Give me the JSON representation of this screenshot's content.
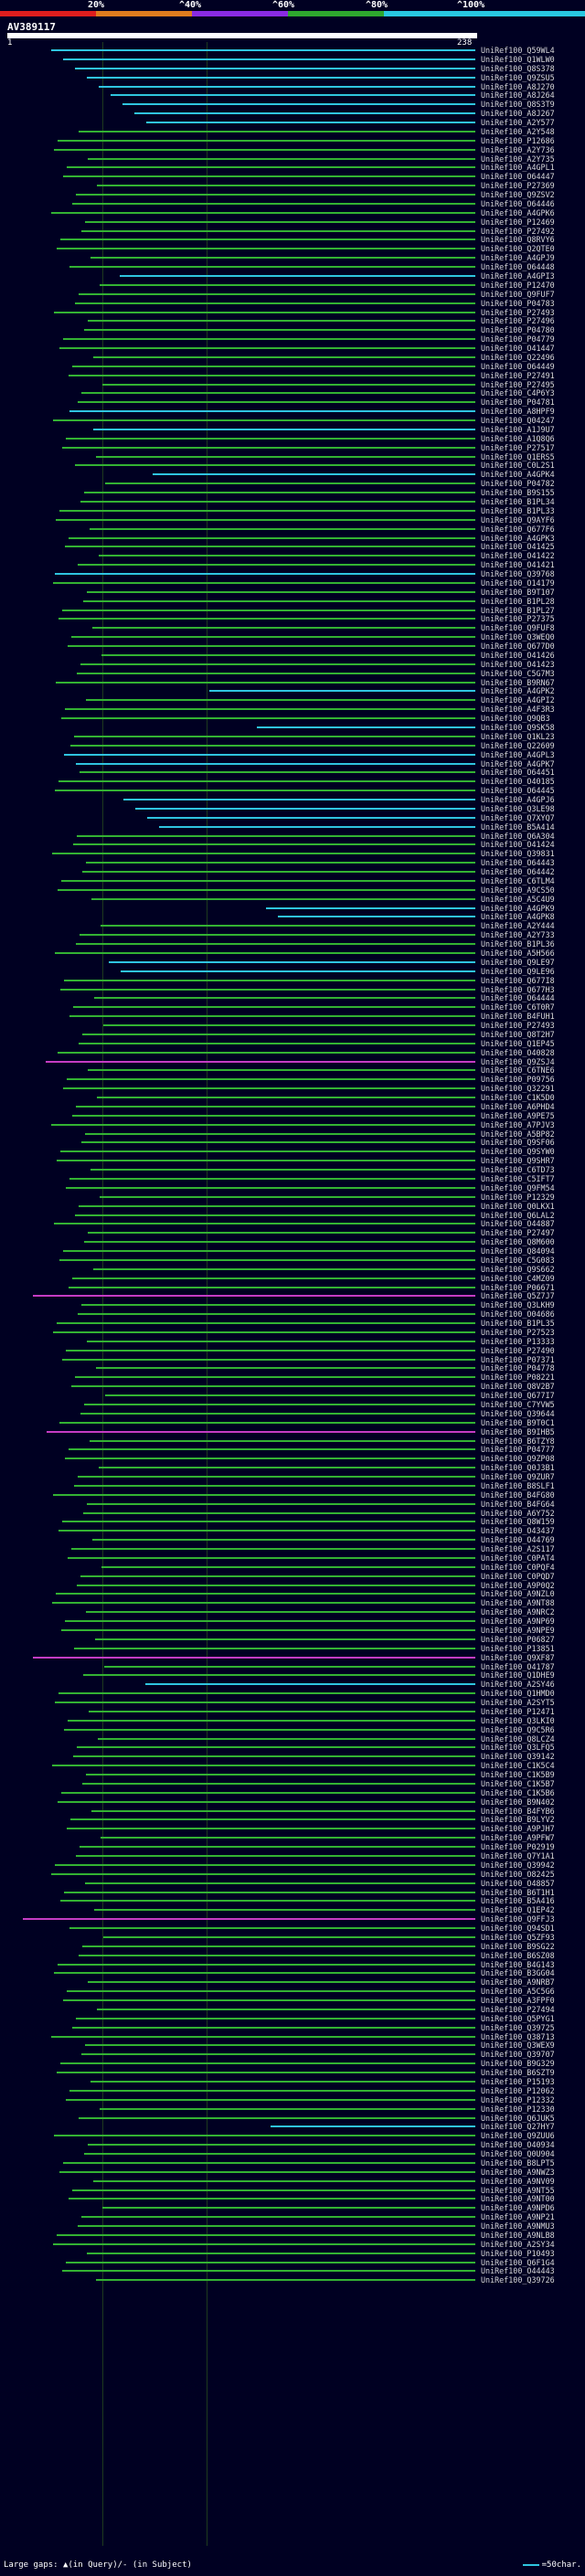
{
  "scale": {
    "ticks": [
      "20%",
      "^40%",
      "^60%",
      "^80%",
      "^100%"
    ],
    "colors": [
      "#e01e1e",
      "#e07c1e",
      "#8a2be2",
      "#2ea82e",
      "#28c8e0"
    ]
  },
  "query": {
    "accession": "AV389117",
    "start": "1",
    "end": "238"
  },
  "legend": {
    "text": "Large gaps: ▲(in Query)/- (in Subject)",
    "right": "=50char."
  },
  "colors": {
    "green": "#33b233",
    "cyan": "#2fc4e0",
    "magenta": "#c43cc4",
    "bg": "#000022"
  },
  "hits": [
    {
      "label": "UniRef100_Q59WL4",
      "color": "cyan"
    },
    {
      "label": "UniRef100_Q1WLW0",
      "color": "cyan"
    },
    {
      "label": "UniRef100_Q8S378",
      "color": "cyan"
    },
    {
      "label": "UniRef100_Q9ZSU5",
      "color": "cyan"
    },
    {
      "label": "UniRef100_A8J270",
      "color": "cyan"
    },
    {
      "label": "UniRef100_A8J264",
      "color": "cyan"
    },
    {
      "label": "UniRef100_Q8S3T9",
      "color": "cyan"
    },
    {
      "label": "UniRef100_A8J267",
      "color": "cyan"
    },
    {
      "label": "UniRef100_A2Y577",
      "color": "cyan"
    },
    {
      "label": "UniRef100_A2Y548",
      "color": "green"
    },
    {
      "label": "UniRef100_P12686",
      "color": "green"
    },
    {
      "label": "UniRef100_A2Y736",
      "color": "green"
    },
    {
      "label": "UniRef100_A2Y735",
      "color": "green"
    },
    {
      "label": "UniRef100_A4GPL1",
      "color": "green"
    },
    {
      "label": "UniRef100_O64447",
      "color": "green"
    },
    {
      "label": "UniRef100_P27369",
      "color": "green"
    },
    {
      "label": "UniRef100_Q9ZSV2",
      "color": "green"
    },
    {
      "label": "UniRef100_O64446",
      "color": "green"
    },
    {
      "label": "UniRef100_A4GPK6",
      "color": "green"
    },
    {
      "label": "UniRef100_P12469",
      "color": "green"
    },
    {
      "label": "UniRef100_P27492",
      "color": "green"
    },
    {
      "label": "UniRef100_Q8RVY6",
      "color": "green"
    },
    {
      "label": "UniRef100_Q2QTE0",
      "color": "green"
    },
    {
      "label": "UniRef100_A4GPJ9",
      "color": "green"
    },
    {
      "label": "UniRef100_O64448",
      "color": "green"
    },
    {
      "label": "UniRef100_A4GPI3",
      "color": "cyan"
    },
    {
      "label": "UniRef100_P12470",
      "color": "green"
    },
    {
      "label": "UniRef100_Q9FUF7",
      "color": "green"
    },
    {
      "label": "UniRef100_P04783",
      "color": "green"
    },
    {
      "label": "UniRef100_P27493",
      "color": "green"
    },
    {
      "label": "UniRef100_P27496",
      "color": "green"
    },
    {
      "label": "UniRef100_P04780",
      "color": "green"
    },
    {
      "label": "UniRef100_P04779",
      "color": "green"
    },
    {
      "label": "UniRef100_O41447",
      "color": "green"
    },
    {
      "label": "UniRef100_Q22496",
      "color": "green"
    },
    {
      "label": "UniRef100_O64449",
      "color": "green"
    },
    {
      "label": "UniRef100_P27491",
      "color": "green"
    },
    {
      "label": "UniRef100_P27495",
      "color": "green"
    },
    {
      "label": "UniRef100_C4P6Y3",
      "color": "green"
    },
    {
      "label": "UniRef100_P04781",
      "color": "green"
    },
    {
      "label": "UniRef100_A8HPF9",
      "color": "cyan"
    },
    {
      "label": "UniRef100_Q04247",
      "color": "green"
    },
    {
      "label": "UniRef100_A1J9U7",
      "color": "cyan"
    },
    {
      "label": "UniRef100_A1Q8Q6",
      "color": "green"
    },
    {
      "label": "UniRef100_P27517",
      "color": "green"
    },
    {
      "label": "UniRef100_Q1ERS5",
      "color": "green"
    },
    {
      "label": "UniRef100_C0L2S1",
      "color": "green"
    },
    {
      "label": "UniRef100_A4GPK4",
      "color": "cyan"
    },
    {
      "label": "UniRef100_P04782",
      "color": "green"
    },
    {
      "label": "UniRef100_B9S155",
      "color": "green"
    },
    {
      "label": "UniRef100_B1PL34",
      "color": "green"
    },
    {
      "label": "UniRef100_B1PL33",
      "color": "green"
    },
    {
      "label": "UniRef100_Q9AYF6",
      "color": "green"
    },
    {
      "label": "UniRef100_Q677F6",
      "color": "green"
    },
    {
      "label": "UniRef100_A4GPK3",
      "color": "green"
    },
    {
      "label": "UniRef100_O41425",
      "color": "green"
    },
    {
      "label": "UniRef100_O41422",
      "color": "green"
    },
    {
      "label": "UniRef100_O41421",
      "color": "green"
    },
    {
      "label": "UniRef100_Q39768",
      "color": "cyan"
    },
    {
      "label": "UniRef100_O14179",
      "color": "green"
    },
    {
      "label": "UniRef100_B9T107",
      "color": "green"
    },
    {
      "label": "UniRef100_B1PL28",
      "color": "green"
    },
    {
      "label": "UniRef100_B1PL27",
      "color": "green"
    },
    {
      "label": "UniRef100_P27375",
      "color": "green"
    },
    {
      "label": "UniRef100_Q9FUF8",
      "color": "green"
    },
    {
      "label": "UniRef100_Q3WEQ0",
      "color": "green"
    },
    {
      "label": "UniRef100_Q677D0",
      "color": "green"
    },
    {
      "label": "UniRef100_O41426",
      "color": "green"
    },
    {
      "label": "UniRef100_O41423",
      "color": "green"
    },
    {
      "label": "UniRef100_C5G7M3",
      "color": "green"
    },
    {
      "label": "UniRef100_B9RN67",
      "color": "green"
    },
    {
      "label": "UniRef100_A4GPK2",
      "color": "cyan"
    },
    {
      "label": "UniRef100_A4GPI2",
      "color": "green"
    },
    {
      "label": "UniRef100_A4F3R3",
      "color": "green"
    },
    {
      "label": "UniRef100_Q9QB3",
      "color": "green"
    },
    {
      "label": "UniRef100_Q9SK58",
      "color": "cyan"
    },
    {
      "label": "UniRef100_Q1KL23",
      "color": "green"
    },
    {
      "label": "UniRef100_Q22609",
      "color": "green"
    },
    {
      "label": "UniRef100_A4GPL3",
      "color": "cyan"
    },
    {
      "label": "UniRef100_A4GPK7",
      "color": "cyan"
    },
    {
      "label": "UniRef100_O64451",
      "color": "green"
    },
    {
      "label": "UniRef100_O40185",
      "color": "green"
    },
    {
      "label": "UniRef100_O64445",
      "color": "green"
    },
    {
      "label": "UniRef100_A4GPJ6",
      "color": "cyan"
    },
    {
      "label": "UniRef100_Q3LE98",
      "color": "cyan"
    },
    {
      "label": "UniRef100_Q7XYQ7",
      "color": "cyan"
    },
    {
      "label": "UniRef100_B5A414",
      "color": "cyan"
    },
    {
      "label": "UniRef100_Q6A304",
      "color": "green"
    },
    {
      "label": "UniRef100_O41424",
      "color": "green"
    },
    {
      "label": "UniRef100_Q39831",
      "color": "green"
    },
    {
      "label": "UniRef100_O64443",
      "color": "green"
    },
    {
      "label": "UniRef100_O64442",
      "color": "green"
    },
    {
      "label": "UniRef100_C6TLM4",
      "color": "green"
    },
    {
      "label": "UniRef100_A9CS50",
      "color": "green"
    },
    {
      "label": "UniRef100_A5C4U9",
      "color": "green"
    },
    {
      "label": "UniRef100_A4GPK9",
      "color": "cyan"
    },
    {
      "label": "UniRef100_A4GPK8",
      "color": "cyan"
    },
    {
      "label": "UniRef100_A2Y444",
      "color": "green"
    },
    {
      "label": "UniRef100_A2Y733",
      "color": "green"
    },
    {
      "label": "UniRef100_B1PL36",
      "color": "green"
    },
    {
      "label": "UniRef100_A5H566",
      "color": "green"
    },
    {
      "label": "UniRef100_Q9LE97",
      "color": "cyan"
    },
    {
      "label": "UniRef100_Q9LE96",
      "color": "cyan"
    },
    {
      "label": "UniRef100_Q677I8",
      "color": "green"
    },
    {
      "label": "UniRef100_Q677H3",
      "color": "green"
    },
    {
      "label": "UniRef100_O64444",
      "color": "green"
    },
    {
      "label": "UniRef100_C6T0R7",
      "color": "green"
    },
    {
      "label": "UniRef100_B4FUH1",
      "color": "green"
    },
    {
      "label": "UniRef100_P27493",
      "color": "green"
    },
    {
      "label": "UniRef100_Q8T2H7",
      "color": "green"
    },
    {
      "label": "UniRef100_Q1EP45",
      "color": "green"
    },
    {
      "label": "UniRef100_O40828",
      "color": "green"
    },
    {
      "label": "UniRef100_Q9ZSJ4",
      "color": "magenta"
    },
    {
      "label": "UniRef100_C6TNE6",
      "color": "green"
    },
    {
      "label": "UniRef100_P09756",
      "color": "green"
    },
    {
      "label": "UniRef100_Q32291",
      "color": "green"
    },
    {
      "label": "UniRef100_C1K5D0",
      "color": "green"
    },
    {
      "label": "UniRef100_A6PHD4",
      "color": "green"
    },
    {
      "label": "UniRef100_A9PE75",
      "color": "green"
    },
    {
      "label": "UniRef100_A7PJV3",
      "color": "green"
    },
    {
      "label": "UniRef100_A5BP82",
      "color": "green"
    },
    {
      "label": "UniRef100_Q9SF06",
      "color": "green"
    },
    {
      "label": "UniRef100_Q9SYW0",
      "color": "green"
    },
    {
      "label": "UniRef100_Q9SHR7",
      "color": "green"
    },
    {
      "label": "UniRef100_C6TD73",
      "color": "green"
    },
    {
      "label": "UniRef100_C5IFT7",
      "color": "green"
    },
    {
      "label": "UniRef100_Q9FM54",
      "color": "green"
    },
    {
      "label": "UniRef100_P12329",
      "color": "green"
    },
    {
      "label": "UniRef100_Q0LKX1",
      "color": "green"
    },
    {
      "label": "UniRef100_Q6LAL2",
      "color": "green"
    },
    {
      "label": "UniRef100_O44887",
      "color": "green"
    },
    {
      "label": "UniRef100_P27497",
      "color": "green"
    },
    {
      "label": "UniRef100_Q8M600",
      "color": "green"
    },
    {
      "label": "UniRef100_Q84094",
      "color": "green"
    },
    {
      "label": "UniRef100_C5G083",
      "color": "green"
    },
    {
      "label": "UniRef100_Q9S662",
      "color": "green"
    },
    {
      "label": "UniRef100_C4MZ09",
      "color": "green"
    },
    {
      "label": "UniRef100_P06671",
      "color": "green"
    },
    {
      "label": "UniRef100_Q5Z7J7",
      "color": "magenta"
    },
    {
      "label": "UniRef100_Q3LKH9",
      "color": "green"
    },
    {
      "label": "UniRef100_O04686",
      "color": "green"
    },
    {
      "label": "UniRef100_B1PL35",
      "color": "green"
    },
    {
      "label": "UniRef100_P27523",
      "color": "green"
    },
    {
      "label": "UniRef100_P13333",
      "color": "green"
    },
    {
      "label": "UniRef100_P27490",
      "color": "green"
    },
    {
      "label": "UniRef100_P07371",
      "color": "green"
    },
    {
      "label": "UniRef100_P04778",
      "color": "green"
    },
    {
      "label": "UniRef100_P08221",
      "color": "green"
    },
    {
      "label": "UniRef100_Q8V2B7",
      "color": "green"
    },
    {
      "label": "UniRef100_Q677I7",
      "color": "green"
    },
    {
      "label": "UniRef100_C7YVW5",
      "color": "green"
    },
    {
      "label": "UniRef100_Q39644",
      "color": "green"
    },
    {
      "label": "UniRef100_B9T0C1",
      "color": "green"
    },
    {
      "label": "UniRef100_B9IHB5",
      "color": "magenta"
    },
    {
      "label": "UniRef100_B6TZY8",
      "color": "green"
    },
    {
      "label": "UniRef100_P04777",
      "color": "green"
    },
    {
      "label": "UniRef100_Q9ZP08",
      "color": "green"
    },
    {
      "label": "UniRef100_Q0J3B1",
      "color": "green"
    },
    {
      "label": "UniRef100_Q9ZUR7",
      "color": "green"
    },
    {
      "label": "UniRef100_B8SLF1",
      "color": "green"
    },
    {
      "label": "UniRef100_B4FG80",
      "color": "green"
    },
    {
      "label": "UniRef100_B4FG64",
      "color": "green"
    },
    {
      "label": "UniRef100_A6Y752",
      "color": "green"
    },
    {
      "label": "UniRef100_Q8W159",
      "color": "green"
    },
    {
      "label": "UniRef100_O43437",
      "color": "green"
    },
    {
      "label": "UniRef100_O44769",
      "color": "green"
    },
    {
      "label": "UniRef100_A2S117",
      "color": "green"
    },
    {
      "label": "UniRef100_C0PAT4",
      "color": "green"
    },
    {
      "label": "UniRef100_C0PQF4",
      "color": "green"
    },
    {
      "label": "UniRef100_C0PQD7",
      "color": "green"
    },
    {
      "label": "UniRef100_A9P0Q2",
      "color": "green"
    },
    {
      "label": "UniRef100_A9NZL0",
      "color": "green"
    },
    {
      "label": "UniRef100_A9NT88",
      "color": "green"
    },
    {
      "label": "UniRef100_A9NRC2",
      "color": "green"
    },
    {
      "label": "UniRef100_A9NP69",
      "color": "green"
    },
    {
      "label": "UniRef100_A9NPE9",
      "color": "green"
    },
    {
      "label": "UniRef100_P06827",
      "color": "green"
    },
    {
      "label": "UniRef100_P13851",
      "color": "green"
    },
    {
      "label": "UniRef100_Q9XF87",
      "color": "magenta"
    },
    {
      "label": "UniRef100_O41787",
      "color": "green"
    },
    {
      "label": "UniRef100_Q1DHE9",
      "color": "green"
    },
    {
      "label": "UniRef100_A2SY46",
      "color": "cyan"
    },
    {
      "label": "UniRef100_Q1HMD0",
      "color": "green"
    },
    {
      "label": "UniRef100_A2SYT5",
      "color": "green"
    },
    {
      "label": "UniRef100_P12471",
      "color": "green"
    },
    {
      "label": "UniRef100_Q3LKI0",
      "color": "green"
    },
    {
      "label": "UniRef100_Q9C5R6",
      "color": "green"
    },
    {
      "label": "UniRef100_Q8LCZ4",
      "color": "green"
    },
    {
      "label": "UniRef100_Q3LFQ5",
      "color": "green"
    },
    {
      "label": "UniRef100_Q39142",
      "color": "green"
    },
    {
      "label": "UniRef100_C1K5C4",
      "color": "green"
    },
    {
      "label": "UniRef100_C1K5B9",
      "color": "green"
    },
    {
      "label": "UniRef100_C1K5B7",
      "color": "green"
    },
    {
      "label": "UniRef100_C1K5B6",
      "color": "green"
    },
    {
      "label": "UniRef100_B9N402",
      "color": "green"
    },
    {
      "label": "UniRef100_B4FYB6",
      "color": "green"
    },
    {
      "label": "UniRef100_B9LYV2",
      "color": "green"
    },
    {
      "label": "UniRef100_A9PJH7",
      "color": "green"
    },
    {
      "label": "UniRef100_A9PFW7",
      "color": "green"
    },
    {
      "label": "UniRef100_P02919",
      "color": "green"
    },
    {
      "label": "UniRef100_Q7Y1A1",
      "color": "green"
    },
    {
      "label": "UniRef100_Q39942",
      "color": "green"
    },
    {
      "label": "UniRef100_O82425",
      "color": "green"
    },
    {
      "label": "UniRef100_O48857",
      "color": "green"
    },
    {
      "label": "UniRef100_B6T1H1",
      "color": "green"
    },
    {
      "label": "UniRef100_B5A416",
      "color": "green"
    },
    {
      "label": "UniRef100_Q1EP42",
      "color": "green"
    },
    {
      "label": "UniRef100_Q9FFJ3",
      "color": "magenta"
    },
    {
      "label": "UniRef100_Q94SD1",
      "color": "green"
    },
    {
      "label": "UniRef100_Q5ZF93",
      "color": "green"
    },
    {
      "label": "UniRef100_B9SG22",
      "color": "green"
    },
    {
      "label": "UniRef100_B6SZ08",
      "color": "green"
    },
    {
      "label": "UniRef100_B4G143",
      "color": "green"
    },
    {
      "label": "UniRef100_B3GG04",
      "color": "green"
    },
    {
      "label": "UniRef100_A9NRB7",
      "color": "green"
    },
    {
      "label": "UniRef100_A5C5G6",
      "color": "green"
    },
    {
      "label": "UniRef100_A3FPF0",
      "color": "green"
    },
    {
      "label": "UniRef100_P27494",
      "color": "green"
    },
    {
      "label": "UniRef100_Q5PYG1",
      "color": "green"
    },
    {
      "label": "UniRef100_Q39725",
      "color": "green"
    },
    {
      "label": "UniRef100_Q38713",
      "color": "green"
    },
    {
      "label": "UniRef100_Q3WEX9",
      "color": "green"
    },
    {
      "label": "UniRef100_Q39707",
      "color": "green"
    },
    {
      "label": "UniRef100_B9G329",
      "color": "green"
    },
    {
      "label": "UniRef100_B6SZT9",
      "color": "green"
    },
    {
      "label": "UniRef100_P15193",
      "color": "green"
    },
    {
      "label": "UniRef100_P12062",
      "color": "green"
    },
    {
      "label": "UniRef100_P12332",
      "color": "green"
    },
    {
      "label": "UniRef100_P12330",
      "color": "green"
    },
    {
      "label": "UniRef100_Q6JUK5",
      "color": "green"
    },
    {
      "label": "UniRef100_Q27HY7",
      "color": "cyan"
    },
    {
      "label": "UniRef100_Q9ZUU6",
      "color": "green"
    },
    {
      "label": "UniRef100_O40934",
      "color": "green"
    },
    {
      "label": "UniRef100_Q0U904",
      "color": "green"
    },
    {
      "label": "UniRef100_B8LPT5",
      "color": "green"
    },
    {
      "label": "UniRef100_A9NWZ3",
      "color": "green"
    },
    {
      "label": "UniRef100_A9NV09",
      "color": "green"
    },
    {
      "label": "UniRef100_A9NT55",
      "color": "green"
    },
    {
      "label": "UniRef100_A9NT00",
      "color": "green"
    },
    {
      "label": "UniRef100_A9NPD6",
      "color": "green"
    },
    {
      "label": "UniRef100_A9NP21",
      "color": "green"
    },
    {
      "label": "UniRef100_A9NMU3",
      "color": "green"
    },
    {
      "label": "UniRef100_A9NLB8",
      "color": "green"
    },
    {
      "label": "UniRef100_A2SY34",
      "color": "green"
    },
    {
      "label": "UniRef100_P10493",
      "color": "green"
    },
    {
      "label": "UniRef100_Q6F1G4",
      "color": "green"
    },
    {
      "label": "UniRef100_O44443",
      "color": "green"
    },
    {
      "label": "UniRef100_Q39726",
      "color": "green"
    }
  ]
}
